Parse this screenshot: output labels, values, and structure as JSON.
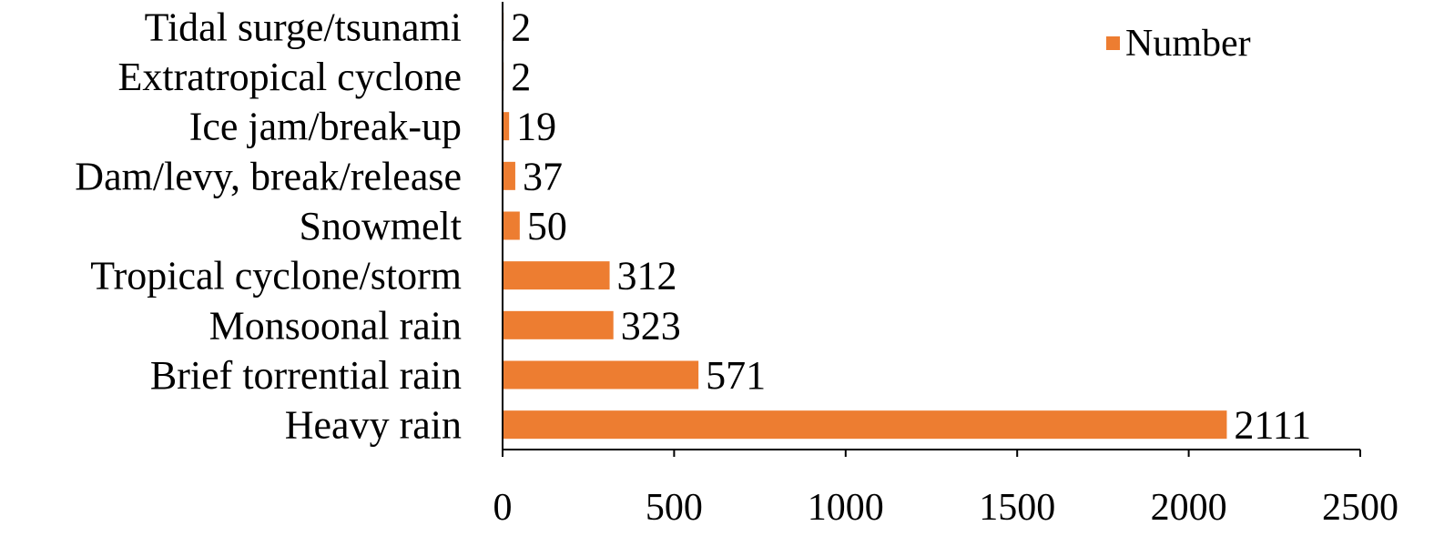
{
  "chart_data": {
    "type": "bar",
    "orientation": "horizontal",
    "title": "",
    "xlabel": "",
    "ylabel": "",
    "categories": [
      "Heavy rain",
      "Brief torrential rain",
      "Monsoonal rain",
      "Tropical cyclone/storm",
      "Snowmelt",
      "Dam/levy, break/release",
      "Ice jam/break-up",
      "Extratropical cyclone",
      "Tidal surge/tsunami"
    ],
    "series": [
      {
        "name": "Number",
        "color": "#ED7D31",
        "values": [
          2111,
          571,
          323,
          312,
          50,
          37,
          19,
          2,
          2
        ]
      }
    ],
    "xlim": [
      0,
      2500
    ],
    "xticks": [
      0,
      500,
      1000,
      1500,
      2000,
      2500
    ],
    "data_labels": true,
    "grid": false,
    "legend_position": "top-right"
  }
}
